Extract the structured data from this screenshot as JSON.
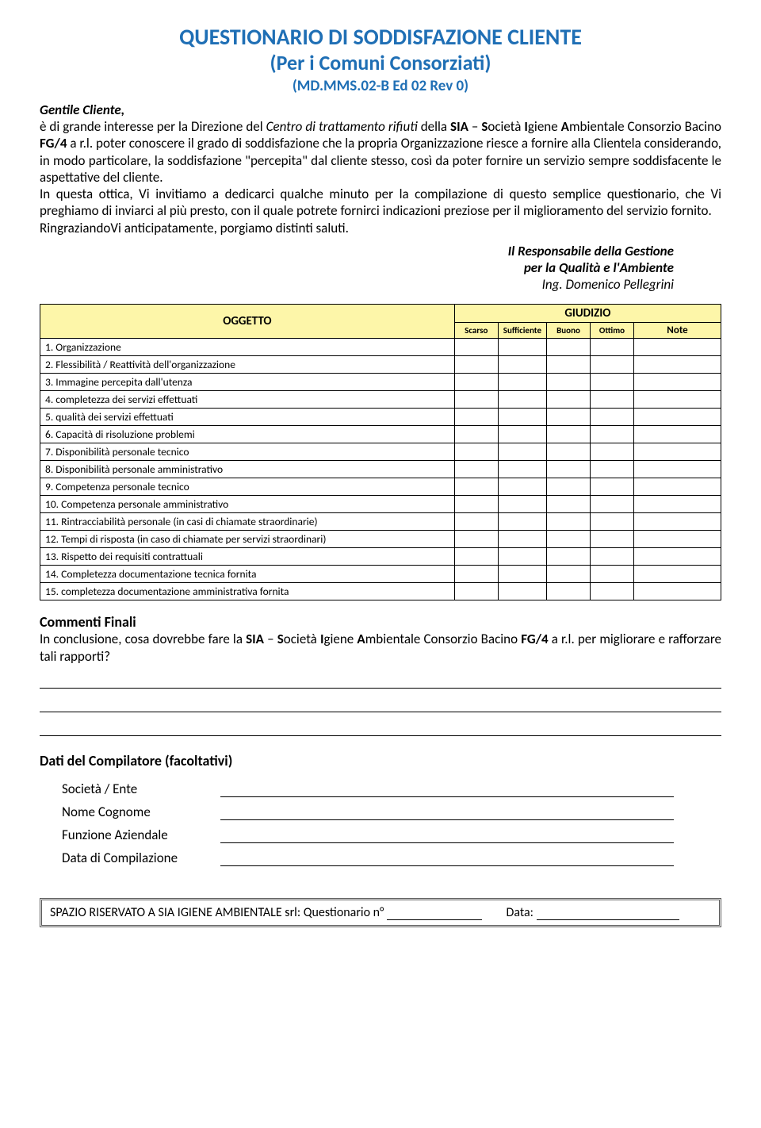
{
  "header": {
    "title": "QUESTIONARIO DI SODDISFAZIONE CLIENTE",
    "subtitle": "(Per i Comuni Consorziati)",
    "doc_ref": "(MD.MMS.02-B  Ed 02  Rev 0)"
  },
  "salutation": "Gentile Cliente,",
  "intro": {
    "p1_pre": "è di grande interesse per la Direzione del ",
    "p1_em1": "Centro di trattamento rifiuti",
    "p1_mid1": " della ",
    "p1_b1": "SIA",
    "p1_mid2": " – ",
    "p1_b2": "S",
    "p1_t2": "ocietà ",
    "p1_b3": "I",
    "p1_t3": "giene ",
    "p1_b4": "A",
    "p1_t4": "mbientale Consorzio Bacino ",
    "p1_b5": "FG/4",
    "p1_t5": " a r.l. poter conoscere il grado di soddisfazione che la propria Organizzazione riesce a fornire alla Clientela considerando, in modo particolare, la soddisfazione \"percepita\" dal cliente stesso, così da poter fornire un servizio sempre soddisfacente le aspettative del cliente.",
    "p2": "In questa ottica, Vi invitiamo a dedicarci qualche minuto per la compilazione di questo semplice questionario, che Vi preghiamo di inviarci al più presto, con il quale potrete fornirci indicazioni preziose per il miglioramento del servizio fornito.",
    "p3": "RingraziandoVi anticipatamente, porgiamo distinti saluti."
  },
  "signatory": {
    "role1": "Il Responsabile della Gestione",
    "role2": "per la Qualità e l'Ambiente",
    "name": "Ing. Domenico Pellegrini"
  },
  "table": {
    "header_oggetto": "OGGETTO",
    "header_giudizio": "GIUDIZIO",
    "columns": [
      "Scarso",
      "Sufficiente",
      "Buono",
      "Ottimo",
      "Note"
    ],
    "rows": [
      "1.   Organizzazione",
      "2.   Flessibilità / Reattività dell'organizzazione",
      "3.   Immagine percepita dall'utenza",
      "4.   completezza dei servizi effettuati",
      "5.   qualità dei servizi effettuati",
      "6.   Capacità di risoluzione problemi",
      "7.   Disponibilità personale tecnico",
      "8.   Disponibilità personale amministrativo",
      "9.   Competenza personale tecnico",
      "10.  Competenza personale amministrativo",
      "11.  Rintracciabilità personale (in casi di chiamate straordinarie)",
      "12.  Tempi di risposta (in caso di chiamate per servizi straordinari)",
      "13.   Rispetto dei requisiti contrattuali",
      "14.  Completezza documentazione tecnica fornita",
      "15.  completezza documentazione amministrativa fornita"
    ]
  },
  "finals": {
    "heading": "Commenti Finali",
    "text_pre": "In conclusione, cosa dovrebbe fare la ",
    "b1": "SIA",
    "mid": " – ",
    "b2": "S",
    "t2": "ocietà ",
    "b3": "I",
    "t3": "giene ",
    "b4": "A",
    "t4": "mbientale Consorzio Bacino ",
    "b5": "FG/4",
    "t5": " a r.l. per migliorare e rafforzare tali rapporti?"
  },
  "compiler": {
    "heading": "Dati del Compilatore (facoltativi)",
    "fields": [
      "Società / Ente",
      "Nome Cognome",
      "Funzione Aziendale",
      "Data di Compilazione"
    ]
  },
  "footer": {
    "text1": "SPAZIO RISERVATO A SIA IGIENE AMBIENTALE  srl: Questionario n°",
    "text2": "Data:"
  }
}
